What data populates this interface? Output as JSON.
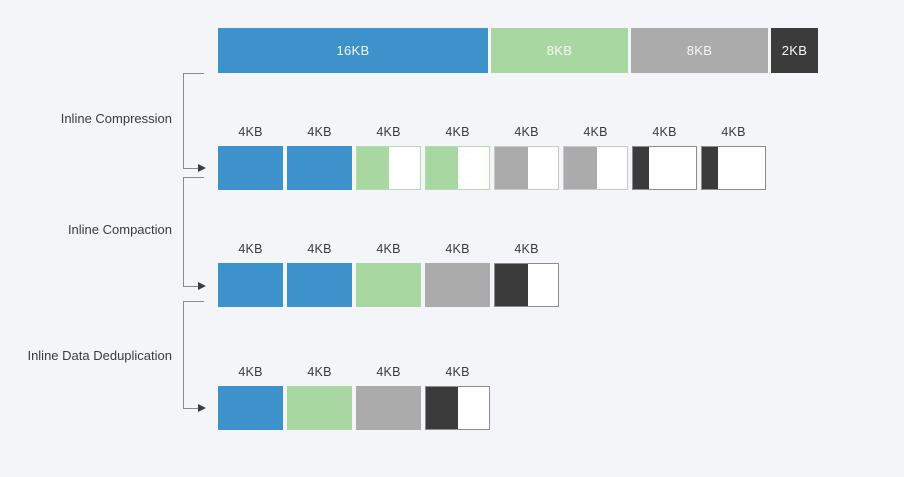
{
  "palette": {
    "background": "#f4f5f9",
    "blue": "#3e92cc",
    "green": "#a9d7a2",
    "gray": "#ababab",
    "dark": "#3b3b3b",
    "white": "#ffffff",
    "green_border": "#b5dcae",
    "gray_border": "#c9c9c9",
    "dark_border": "#8c8c8c",
    "connector_line": "#8a8a8a",
    "arrowhead": "#3b3b3b",
    "label_text": "#3b3b3b",
    "bar_label_text": "#f5f8f5"
  },
  "stages": [
    {
      "label": "Inline Compression"
    },
    {
      "label": "Inline Compaction"
    },
    {
      "label": "Inline Data Deduplication"
    }
  ],
  "original_bar": {
    "segments": [
      {
        "label": "16KB",
        "color": "blue"
      },
      {
        "label": "8KB",
        "color": "green"
      },
      {
        "label": "8KB",
        "color": "gray"
      },
      {
        "label": "2KB",
        "color": "dark"
      }
    ]
  },
  "rows": {
    "compressed": {
      "blocks": [
        {
          "label": "4KB",
          "fill": "blue",
          "fill_percent": "100%"
        },
        {
          "label": "4KB",
          "fill": "blue",
          "fill_percent": "100%"
        },
        {
          "label": "4KB",
          "fill": "green",
          "fill_percent": "50%"
        },
        {
          "label": "4KB",
          "fill": "green",
          "fill_percent": "50%"
        },
        {
          "label": "4KB",
          "fill": "gray",
          "fill_percent": "52%"
        },
        {
          "label": "4KB",
          "fill": "gray",
          "fill_percent": "52%"
        },
        {
          "label": "4KB",
          "fill": "dark",
          "fill_percent": "26%"
        },
        {
          "label": "4KB",
          "fill": "dark",
          "fill_percent": "26%"
        }
      ]
    },
    "compacted": {
      "blocks": [
        {
          "label": "4KB",
          "fill": "blue",
          "fill_percent": "100%"
        },
        {
          "label": "4KB",
          "fill": "blue",
          "fill_percent": "100%"
        },
        {
          "label": "4KB",
          "fill": "green",
          "fill_percent": "100%"
        },
        {
          "label": "4KB",
          "fill": "gray",
          "fill_percent": "100%"
        },
        {
          "label": "4KB",
          "fill": "dark",
          "fill_percent": "52%"
        }
      ]
    },
    "deduplicated": {
      "blocks": [
        {
          "label": "4KB",
          "fill": "blue",
          "fill_percent": "100%"
        },
        {
          "label": "4KB",
          "fill": "green",
          "fill_percent": "100%"
        },
        {
          "label": "4KB",
          "fill": "gray",
          "fill_percent": "100%"
        },
        {
          "label": "4KB",
          "fill": "dark",
          "fill_percent": "50%"
        }
      ]
    }
  }
}
